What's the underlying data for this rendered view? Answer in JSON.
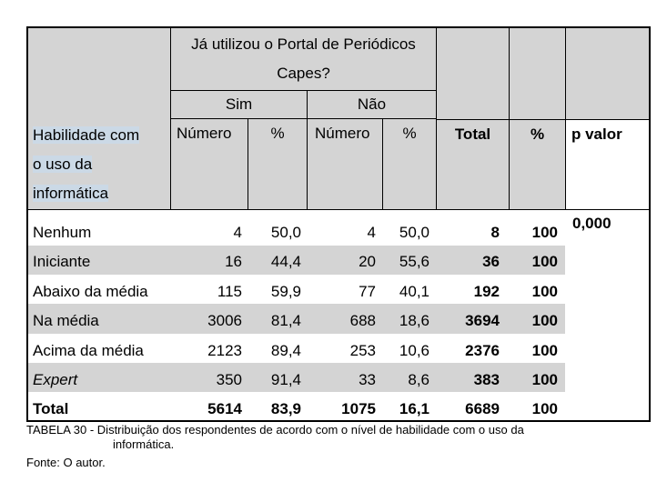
{
  "table": {
    "question_header_line1": "Já utilizou o Portal de Periódicos",
    "question_header_line2": "Capes?",
    "sim_header": "Sim",
    "nao_header": "Não",
    "habilidade_line1": "Habilidade com",
    "habilidade_line2": "o uso da",
    "habilidade_line3": "informática",
    "col_numero_sim": "Número",
    "col_pct_sim": "%",
    "col_numero_nao": "Número",
    "col_pct_nao": "%",
    "col_total": "Total",
    "col_pct_total": "%",
    "col_pvalor": "p valor",
    "p_valor": "0,000",
    "rows": [
      {
        "label": "Nenhum",
        "sim_n": "4",
        "sim_pct": "50,0",
        "nao_n": "4",
        "nao_pct": "50,0",
        "total": "8",
        "total_pct": "100"
      },
      {
        "label": "Iniciante",
        "sim_n": "16",
        "sim_pct": "44,4",
        "nao_n": "20",
        "nao_pct": "55,6",
        "total": "36",
        "total_pct": "100"
      },
      {
        "label": "Abaixo da média",
        "sim_n": "115",
        "sim_pct": "59,9",
        "nao_n": "77",
        "nao_pct": "40,1",
        "total": "192",
        "total_pct": "100"
      },
      {
        "label": "Na média",
        "sim_n": "3006",
        "sim_pct": "81,4",
        "nao_n": "688",
        "nao_pct": "18,6",
        "total": "3694",
        "total_pct": "100"
      },
      {
        "label": "Acima da média",
        "sim_n": "2123",
        "sim_pct": "89,4",
        "nao_n": "253",
        "nao_pct": "10,6",
        "total": "2376",
        "total_pct": "100"
      },
      {
        "label": "Expert",
        "sim_n": "350",
        "sim_pct": "91,4",
        "nao_n": "33",
        "nao_pct": "8,6",
        "total": "383",
        "total_pct": "100"
      }
    ],
    "total_row": {
      "label": "Total",
      "sim_n": "5614",
      "sim_pct": "83,9",
      "nao_n": "1075",
      "nao_pct": "16,1",
      "total": "6689",
      "total_pct": "100"
    }
  },
  "caption_line1": "TABELA 30 - Distribuição dos respondentes de acordo com o nível de habilidade com o uso da",
  "caption_line2": "informática.",
  "source": "Fonte: O autor."
}
